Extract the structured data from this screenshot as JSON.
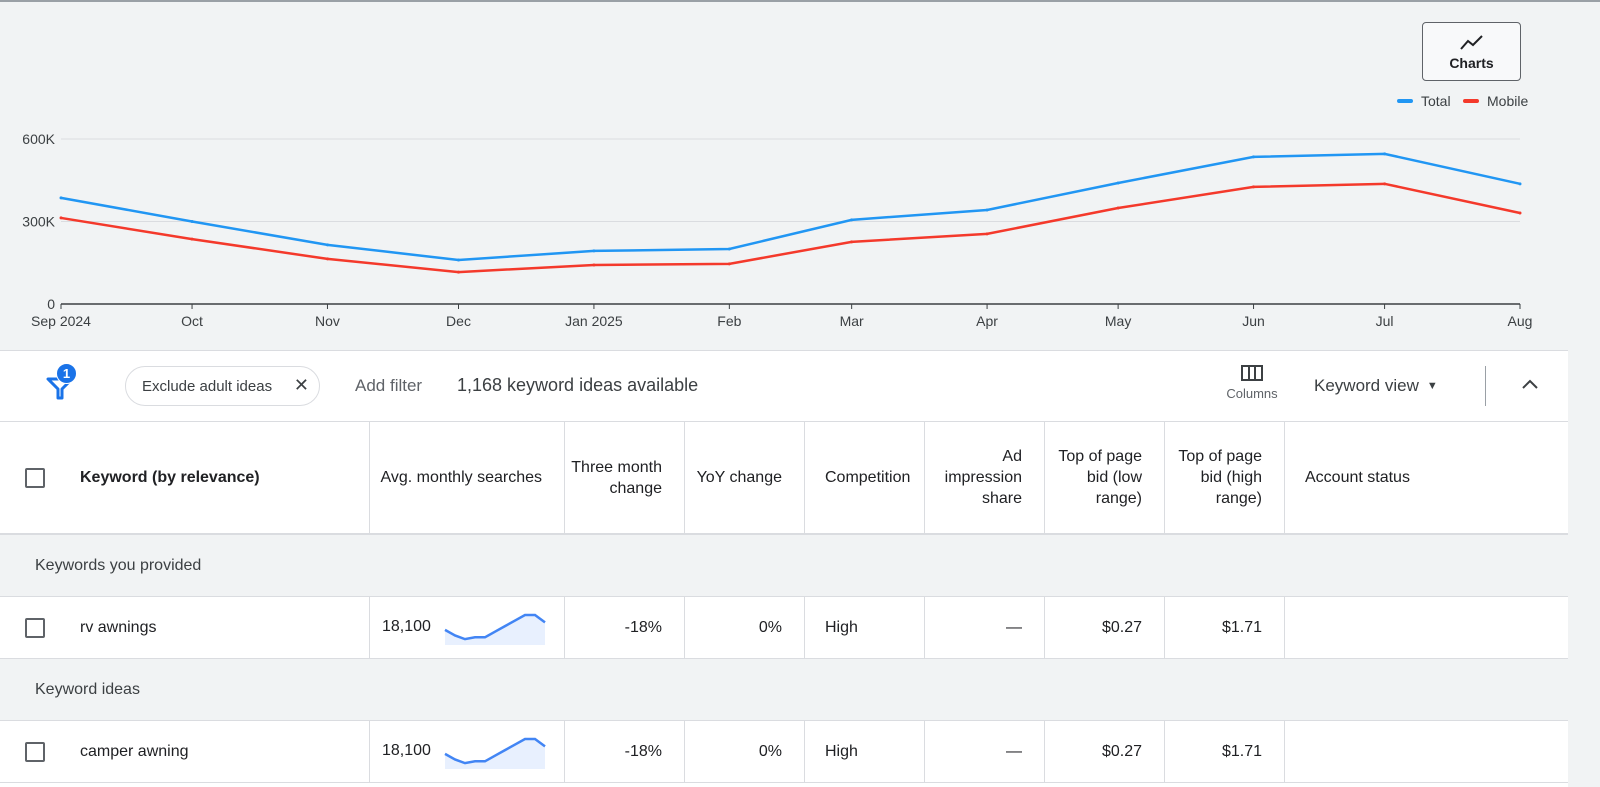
{
  "charts_button": {
    "label": "Charts",
    "icon": "trend-line-icon"
  },
  "legend": [
    {
      "name": "Total",
      "color": "#2196f3"
    },
    {
      "name": "Mobile",
      "color": "#f4392b"
    }
  ],
  "chart_data": {
    "type": "line",
    "categories": [
      "Sep 2024",
      "Oct",
      "Nov",
      "Dec",
      "Jan 2025",
      "Feb",
      "Mar",
      "Apr",
      "May",
      "Jun",
      "Jul",
      "Aug"
    ],
    "y_ticks": [
      "0",
      "300K",
      "600K"
    ],
    "ylim": [
      0,
      600000
    ],
    "grid": true,
    "legend_position": "top-right",
    "series": [
      {
        "name": "Total",
        "color": "#2196f3",
        "values": [
          386000,
          300000,
          215000,
          160000,
          193000,
          200000,
          306000,
          342000,
          440000,
          535000,
          546000,
          437000
        ]
      },
      {
        "name": "Mobile",
        "color": "#f4392b",
        "values": [
          313000,
          236000,
          164000,
          116000,
          142000,
          146000,
          226000,
          255000,
          349000,
          426000,
          437000,
          331000
        ]
      }
    ]
  },
  "toolbar": {
    "filter_badge": "1",
    "chip_label": "Exclude adult ideas",
    "add_filter": "Add filter",
    "count": "1,168 keyword ideas available",
    "columns": "Columns",
    "view": "Keyword view"
  },
  "table": {
    "headers": [
      "Keyword (by relevance)",
      "Avg. monthly searches",
      "Three month change",
      "YoY change",
      "Competition",
      "Ad impression share",
      "Top of page bid (low range)",
      "Top of page bid (high range)",
      "Account status"
    ],
    "groups": [
      {
        "label": "Keywords you provided",
        "rows": [
          {
            "keyword": "rv awnings",
            "searches": "18,100",
            "trend": [
              6,
              3,
              1,
              2,
              2,
              5,
              8,
              11,
              14,
              14,
              10
            ],
            "three_month": "-18%",
            "yoy": "0%",
            "competition": "High",
            "impression_share": "—",
            "bid_low": "$0.27",
            "bid_high": "$1.71",
            "status": ""
          }
        ]
      },
      {
        "label": "Keyword ideas",
        "rows": [
          {
            "keyword": "camper awning",
            "searches": "18,100",
            "trend": [
              6,
              3,
              1,
              2,
              2,
              5,
              8,
              11,
              14,
              14,
              10
            ],
            "three_month": "-18%",
            "yoy": "0%",
            "competition": "High",
            "impression_share": "—",
            "bid_low": "$0.27",
            "bid_high": "$1.71",
            "status": ""
          }
        ]
      }
    ]
  }
}
